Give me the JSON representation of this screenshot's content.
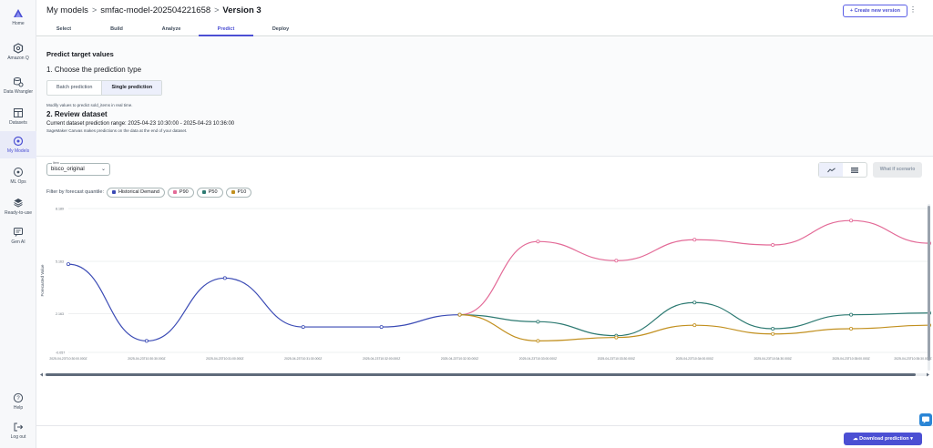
{
  "sidebar": {
    "items": [
      {
        "label": "Home",
        "icon": "home-icon"
      },
      {
        "label": "Amazon Q",
        "icon": "amazon-q-icon"
      },
      {
        "label": "Data Wrangler",
        "icon": "data-wrangler-icon"
      },
      {
        "label": "Datasets",
        "icon": "datasets-icon"
      },
      {
        "label": "My Models",
        "icon": "my-models-icon"
      },
      {
        "label": "ML Ops",
        "icon": "ml-ops-icon"
      },
      {
        "label": "Ready-to-use",
        "icon": "ready-to-use-icon"
      },
      {
        "label": "Gen AI",
        "icon": "gen-ai-icon"
      },
      {
        "label": "Help",
        "icon": "help-icon"
      },
      {
        "label": "Log out",
        "icon": "log-out-icon"
      }
    ],
    "active": "My Models"
  },
  "header": {
    "breadcrumb": [
      "My models",
      "smfac-model-202504221658",
      "Version 3"
    ],
    "create_label": "Create new version",
    "create_icon": "plus-icon",
    "more_icon": "kebab-icon"
  },
  "tabs": [
    "Select",
    "Build",
    "Analyze",
    "Predict",
    "Deploy"
  ],
  "active_tab": "Predict",
  "predict": {
    "title": "Predict target values",
    "step1": "1. Choose the prediction type",
    "seg_batch": "Batch prediction",
    "seg_single": "Single prediction",
    "seg_selected": "Single prediction",
    "hint": "Modify values to predict sold_items in real time.",
    "step2": "2. Review dataset",
    "range": "Current dataset prediction range: 2025-04-23 10:30:00 - 2025-04-23 10:36:00",
    "note": "SageMaker Canvas makes predictions on the data at the end of your dataset."
  },
  "controls": {
    "item_label": "Item",
    "item_value": "bisco_original",
    "whatif_label": "What if scenario",
    "filter_label": "Filter by forecast quantile:",
    "chips": [
      {
        "label": "Historical Demand",
        "color": "#3b4bb5"
      },
      {
        "label": "P90",
        "color": "#e36a97"
      },
      {
        "label": "P50",
        "color": "#2d7a72"
      },
      {
        "label": "P10",
        "color": "#c2901f"
      }
    ]
  },
  "chart_data": {
    "type": "line",
    "ylabel": "Forecasted Value",
    "yticks": [
      "-0.057",
      "2.163",
      "5.163",
      "8.189"
    ],
    "x": [
      "2025-04-23T10:30:00.000Z",
      "2025-04-23T10:30:30.000Z",
      "2025-04-23T10:31:00.000Z",
      "2025-04-23T10:31:30.000Z",
      "2025-04-23T10:32:00.000Z",
      "2025-04-23T10:32:30.000Z",
      "2025-04-23T10:33:00.000Z",
      "2025-04-23T10:33:30.000Z",
      "2025-04-23T10:34:00.000Z",
      "2025-04-23T10:34:30.000Z",
      "2025-04-23T10:35:00.000Z",
      "2025-04-23T10:35:30.000Z"
    ],
    "xlabels": [
      "2025-04-23T10:30:00.000Z",
      "2025-04-23T10:30:30.000Z",
      "2025-04-23T10:31:00.000Z",
      "2025-04-23T10:31:30.000Z",
      "2025-04-23T10:32:00.000Z",
      "2025-04-23T10:32:30.000Z",
      "2025-04-23T10:33:00.000Z",
      "2025-04-23T10:33:30.000Z",
      "2025-04-23T10:34:00.000Z",
      "2025-04-23T10:34:30.000Z",
      "2025-04-23T10:35:00.000Z",
      "2025-04-23T10:35:30.000Z"
    ],
    "series": [
      {
        "name": "Historical Demand",
        "color": "#3b4bb5",
        "values": [
          5.0,
          0.6,
          4.2,
          1.4,
          1.4,
          2.1,
          null,
          null,
          null,
          null,
          null,
          null
        ]
      },
      {
        "name": "P90",
        "color": "#e36a97",
        "values": [
          null,
          null,
          null,
          null,
          null,
          2.1,
          6.3,
          5.2,
          6.4,
          6.1,
          7.5,
          6.2
        ]
      },
      {
        "name": "P50",
        "color": "#2d7a72",
        "values": [
          null,
          null,
          null,
          null,
          null,
          2.1,
          1.7,
          0.9,
          2.8,
          1.3,
          2.1,
          2.2
        ]
      },
      {
        "name": "P10",
        "color": "#c2901f",
        "values": [
          null,
          null,
          null,
          null,
          null,
          2.1,
          0.6,
          0.8,
          1.5,
          1.0,
          1.3,
          1.5
        ]
      }
    ],
    "ylim": [
      -0.057,
      8.189
    ],
    "grid": true,
    "legend": "none"
  },
  "footer": {
    "download_label": "Download prediction",
    "download_icon": "cloud-download-icon"
  }
}
